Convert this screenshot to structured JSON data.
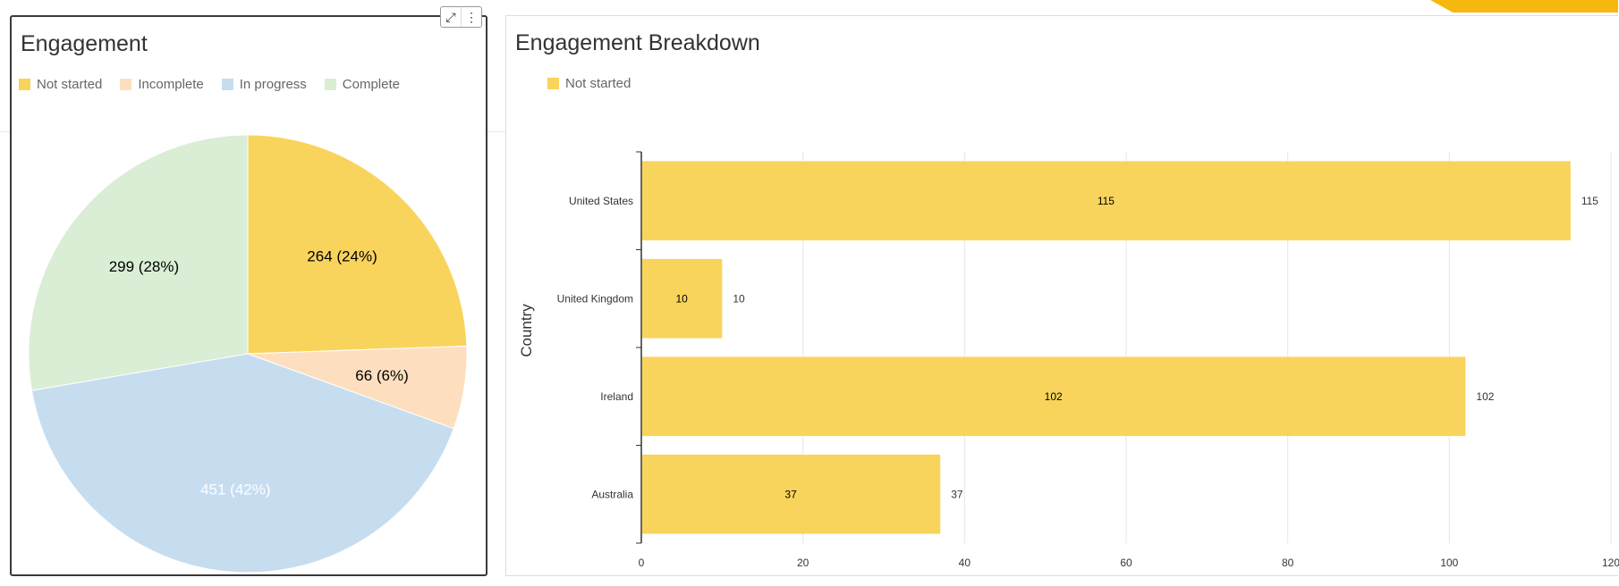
{
  "colors": {
    "not_started": "#f9d45c",
    "incomplete": "#fddfbf",
    "in_progress": "#c6ddf0",
    "complete": "#d9eed4",
    "accent": "#f6b80f"
  },
  "icons": {
    "expand": "expand-icon",
    "more": "more-vertical-icon"
  },
  "chart_data": [
    {
      "type": "pie",
      "title": "Engagement",
      "legend_position": "top-left",
      "slices": [
        {
          "name": "Not started",
          "value": 264,
          "percent": 24,
          "label": "264 (24%)",
          "color": "#f9d45c"
        },
        {
          "name": "Incomplete",
          "value": 66,
          "percent": 6,
          "label": "66 (6%)",
          "color": "#fddfbf"
        },
        {
          "name": "In progress",
          "value": 451,
          "percent": 42,
          "label": "451 (42%)",
          "color": "#c6ddf0"
        },
        {
          "name": "Complete",
          "value": 299,
          "percent": 28,
          "label": "299 (28%)",
          "color": "#d9eed4"
        }
      ]
    },
    {
      "type": "bar",
      "orientation": "horizontal",
      "title": "Engagement Breakdown",
      "legend_position": "top-left",
      "ylabel": "Country",
      "xlabel": "",
      "xlim": [
        0,
        120
      ],
      "xticks": [
        0,
        20,
        40,
        60,
        80,
        100,
        120
      ],
      "grid": true,
      "categories": [
        "United States",
        "United Kingdom",
        "Ireland",
        "Australia"
      ],
      "series": [
        {
          "name": "Not started",
          "values": [
            115,
            10,
            102,
            37
          ],
          "color": "#f9d45c"
        }
      ]
    }
  ]
}
